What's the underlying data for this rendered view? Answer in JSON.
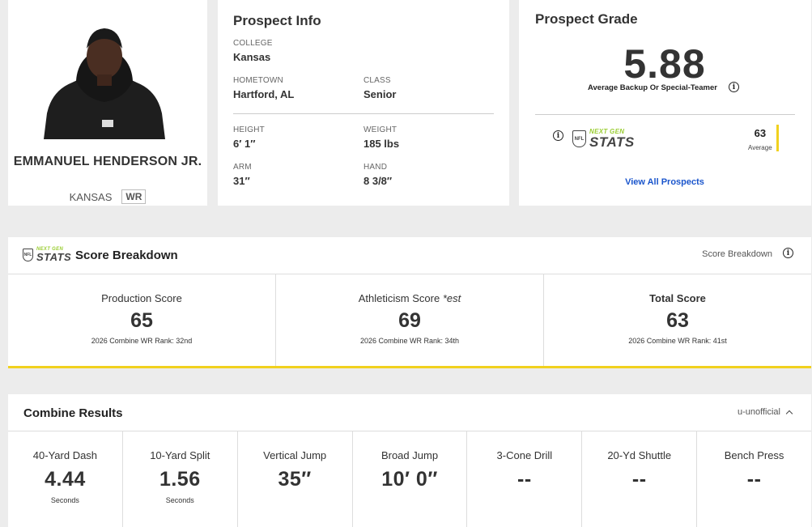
{
  "player": {
    "name": "EMMANUEL HENDERSON JR.",
    "school": "KANSAS",
    "position": "WR"
  },
  "prospect_info": {
    "title": "Prospect Info",
    "college": {
      "label": "COLLEGE",
      "value": "Kansas"
    },
    "hometown": {
      "label": "HOMETOWN",
      "value": "Hartford, AL"
    },
    "class": {
      "label": "CLASS",
      "value": "Senior"
    },
    "height": {
      "label": "HEIGHT",
      "value": "6′ 1″"
    },
    "weight": {
      "label": "WEIGHT",
      "value": "185 lbs"
    },
    "arm": {
      "label": "ARM",
      "value": "31″"
    },
    "hand": {
      "label": "HAND",
      "value": "8 3/8″"
    }
  },
  "prospect_grade": {
    "title": "Prospect Grade",
    "grade": "5.88",
    "description": "Average Backup Or Special-Teamer",
    "ngs_score": "63",
    "ngs_score_label": "Average",
    "view_all": "View All Prospects"
  },
  "ngs_logo": {
    "top": "NEXT GEN",
    "bottom": "STATS",
    "shield": "NFL"
  },
  "score_breakdown": {
    "title": "Score Breakdown",
    "header_label": "Score Breakdown",
    "production": {
      "label": "Production Score",
      "value": "65",
      "rank": "2026 Combine WR Rank: 32nd"
    },
    "athleticism": {
      "label": "Athleticism Score",
      "label_suffix": "*est",
      "value": "69",
      "rank": "2026 Combine WR Rank: 34th"
    },
    "total": {
      "label": "Total Score",
      "value": "63",
      "rank": "2026 Combine WR Rank: 41st"
    }
  },
  "combine": {
    "title": "Combine Results",
    "note": "u-unofficial",
    "drills": [
      {
        "label": "40-Yard Dash",
        "value": "4.44",
        "unit": "Seconds"
      },
      {
        "label": "10-Yard Split",
        "value": "1.56",
        "unit": "Seconds"
      },
      {
        "label": "Vertical Jump",
        "value": "35″",
        "unit": ""
      },
      {
        "label": "Broad Jump",
        "value": "10′ 0″",
        "unit": ""
      },
      {
        "label": "3-Cone Drill",
        "value": "--",
        "unit": ""
      },
      {
        "label": "20-Yd Shuttle",
        "value": "--",
        "unit": ""
      },
      {
        "label": "Bench Press",
        "value": "--",
        "unit": ""
      }
    ]
  },
  "colors": {
    "accent_yellow": "#f1d11e",
    "link_blue": "#1a55cc",
    "ngs_green": "#9acd32"
  }
}
